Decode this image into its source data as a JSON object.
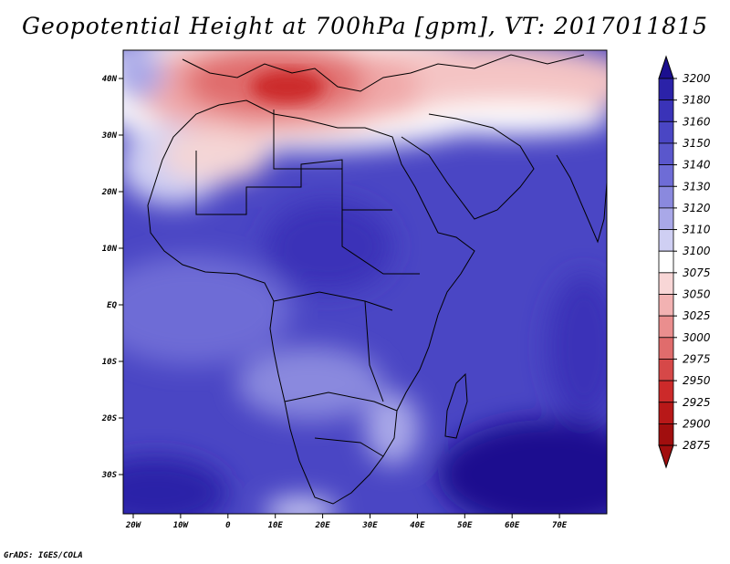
{
  "title": "Geopotential Height at 700hPa [gpm], VT: 2017011815",
  "footer": "GrADS: IGES/COLA",
  "map": {
    "lon_labels": [
      "20W",
      "10W",
      "0",
      "10E",
      "20E",
      "30E",
      "40E",
      "50E",
      "60E",
      "70E"
    ],
    "lat_labels": [
      "40N",
      "30N",
      "20N",
      "10N",
      "EQ",
      "10S",
      "20S",
      "30S"
    ]
  },
  "colorbar": {
    "levels": [
      "3200",
      "3180",
      "3160",
      "3150",
      "3140",
      "3130",
      "3120",
      "3110",
      "3100",
      "3075",
      "3050",
      "3025",
      "3000",
      "2975",
      "2950",
      "2925",
      "2900",
      "2875"
    ],
    "colors": [
      "#1b0f8f",
      "#2b22a8",
      "#3a33b8",
      "#4a46c4",
      "#5a57cc",
      "#6e6cd6",
      "#8a89de",
      "#a9a8e8",
      "#cfcff3",
      "#ffffff",
      "#f8d6d6",
      "#f2b2b2",
      "#ea8e8e",
      "#e06c6c",
      "#d64848",
      "#cc2a2a",
      "#b81818",
      "#a10e0e"
    ]
  }
}
